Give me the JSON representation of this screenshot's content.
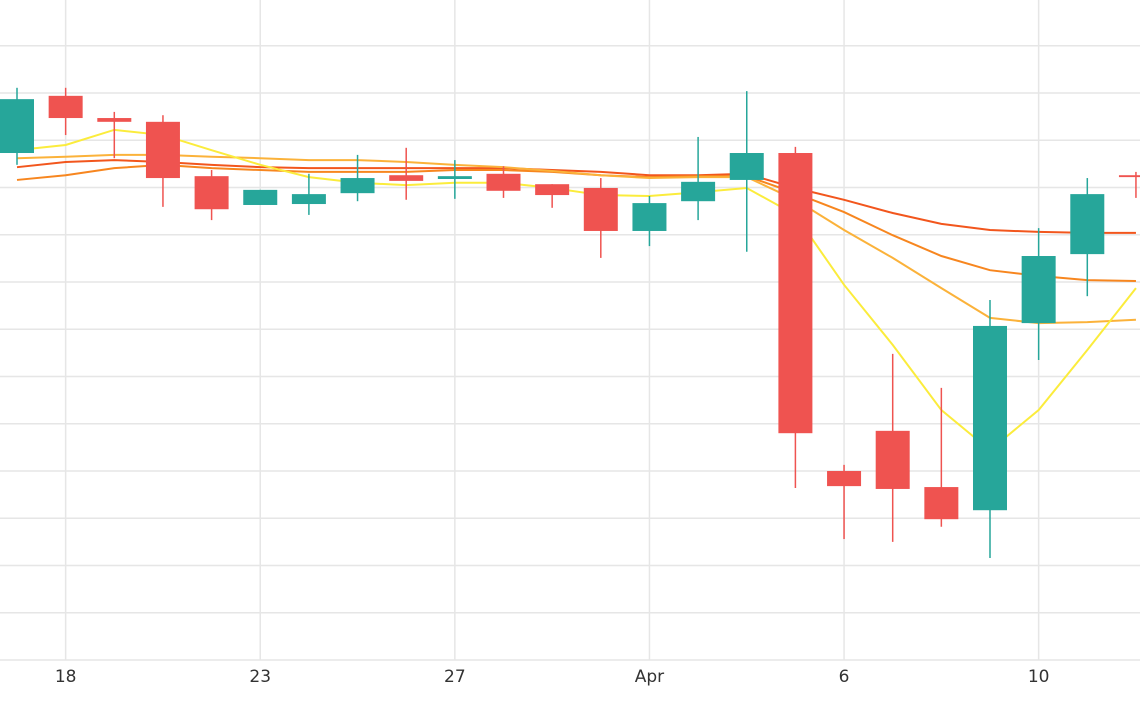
{
  "chart_data": {
    "type": "candlestick",
    "categories": [
      null,
      "18",
      null,
      null,
      null,
      "23",
      null,
      null,
      null,
      "27",
      null,
      null,
      null,
      "Apr",
      null,
      null,
      null,
      "6",
      null,
      null,
      null,
      "10",
      null,
      null
    ],
    "open": [
      10.73,
      11.94,
      11.47,
      11.39,
      10.24,
      9.63,
      9.65,
      9.88,
      10.26,
      10.18,
      10.29,
      10.07,
      9.99,
      9.08,
      9.71,
      10.16,
      10.73,
      4.0,
      4.85,
      3.66,
      3.17,
      7.13,
      8.59,
      10.26
    ],
    "high": [
      12.11,
      12.11,
      11.6,
      11.53,
      10.37,
      9.95,
      10.29,
      10.69,
      10.84,
      10.58,
      10.45,
      10.07,
      10.2,
      9.82,
      11.07,
      12.04,
      10.86,
      4.13,
      6.48,
      5.76,
      7.62,
      9.14,
      10.2,
      10.33
    ],
    "low": [
      10.48,
      11.11,
      10.62,
      9.59,
      9.31,
      9.63,
      9.42,
      9.71,
      9.74,
      9.76,
      9.78,
      9.57,
      8.51,
      8.76,
      9.31,
      8.64,
      3.64,
      2.56,
      2.5,
      2.82,
      2.16,
      6.35,
      7.7,
      9.78
    ],
    "close": [
      11.87,
      11.47,
      11.39,
      10.2,
      9.54,
      9.95,
      9.86,
      10.2,
      10.14,
      10.24,
      9.93,
      9.84,
      9.08,
      9.67,
      10.12,
      10.73,
      4.8,
      3.68,
      3.62,
      2.98,
      7.07,
      8.55,
      9.86,
      10.22
    ],
    "up_color": "#26a69a",
    "down_color": "#ef5350",
    "overlays": [
      {
        "type": "line",
        "color": "#f2561d",
        "values": [
          10.43,
          10.54,
          10.58,
          10.54,
          10.48,
          10.43,
          10.41,
          10.41,
          10.41,
          10.41,
          10.41,
          10.37,
          10.33,
          10.26,
          10.26,
          10.29,
          9.99,
          9.74,
          9.46,
          9.23,
          9.1,
          9.06,
          9.04,
          9.04
        ]
      },
      {
        "type": "line",
        "color": "#f7861f",
        "values": [
          10.16,
          10.26,
          10.41,
          10.48,
          10.41,
          10.37,
          10.33,
          10.33,
          10.33,
          10.37,
          10.37,
          10.33,
          10.26,
          10.22,
          10.24,
          10.24,
          9.88,
          9.48,
          8.99,
          8.55,
          8.25,
          8.13,
          8.04,
          8.02
        ]
      },
      {
        "type": "line",
        "color": "#fbb23a",
        "values": [
          10.62,
          10.65,
          10.69,
          10.69,
          10.65,
          10.62,
          10.58,
          10.58,
          10.54,
          10.48,
          10.43,
          10.35,
          10.26,
          10.2,
          10.22,
          10.22,
          9.74,
          9.1,
          8.51,
          7.87,
          7.24,
          7.13,
          7.15,
          7.2
        ]
      },
      {
        "type": "line",
        "color": "#fbec3c",
        "values": [
          10.79,
          10.9,
          11.22,
          11.11,
          10.79,
          10.48,
          10.22,
          10.1,
          10.05,
          10.1,
          10.1,
          9.99,
          9.84,
          9.82,
          9.9,
          9.99,
          9.42,
          7.94,
          6.67,
          5.29,
          4.44,
          5.29,
          6.56,
          7.87
        ]
      }
    ],
    "ylim": [
      0,
      13.9
    ],
    "yticks": [
      0,
      1,
      2,
      3,
      4,
      5,
      6,
      7,
      8,
      9,
      10,
      11,
      12,
      13
    ],
    "grid": true
  }
}
